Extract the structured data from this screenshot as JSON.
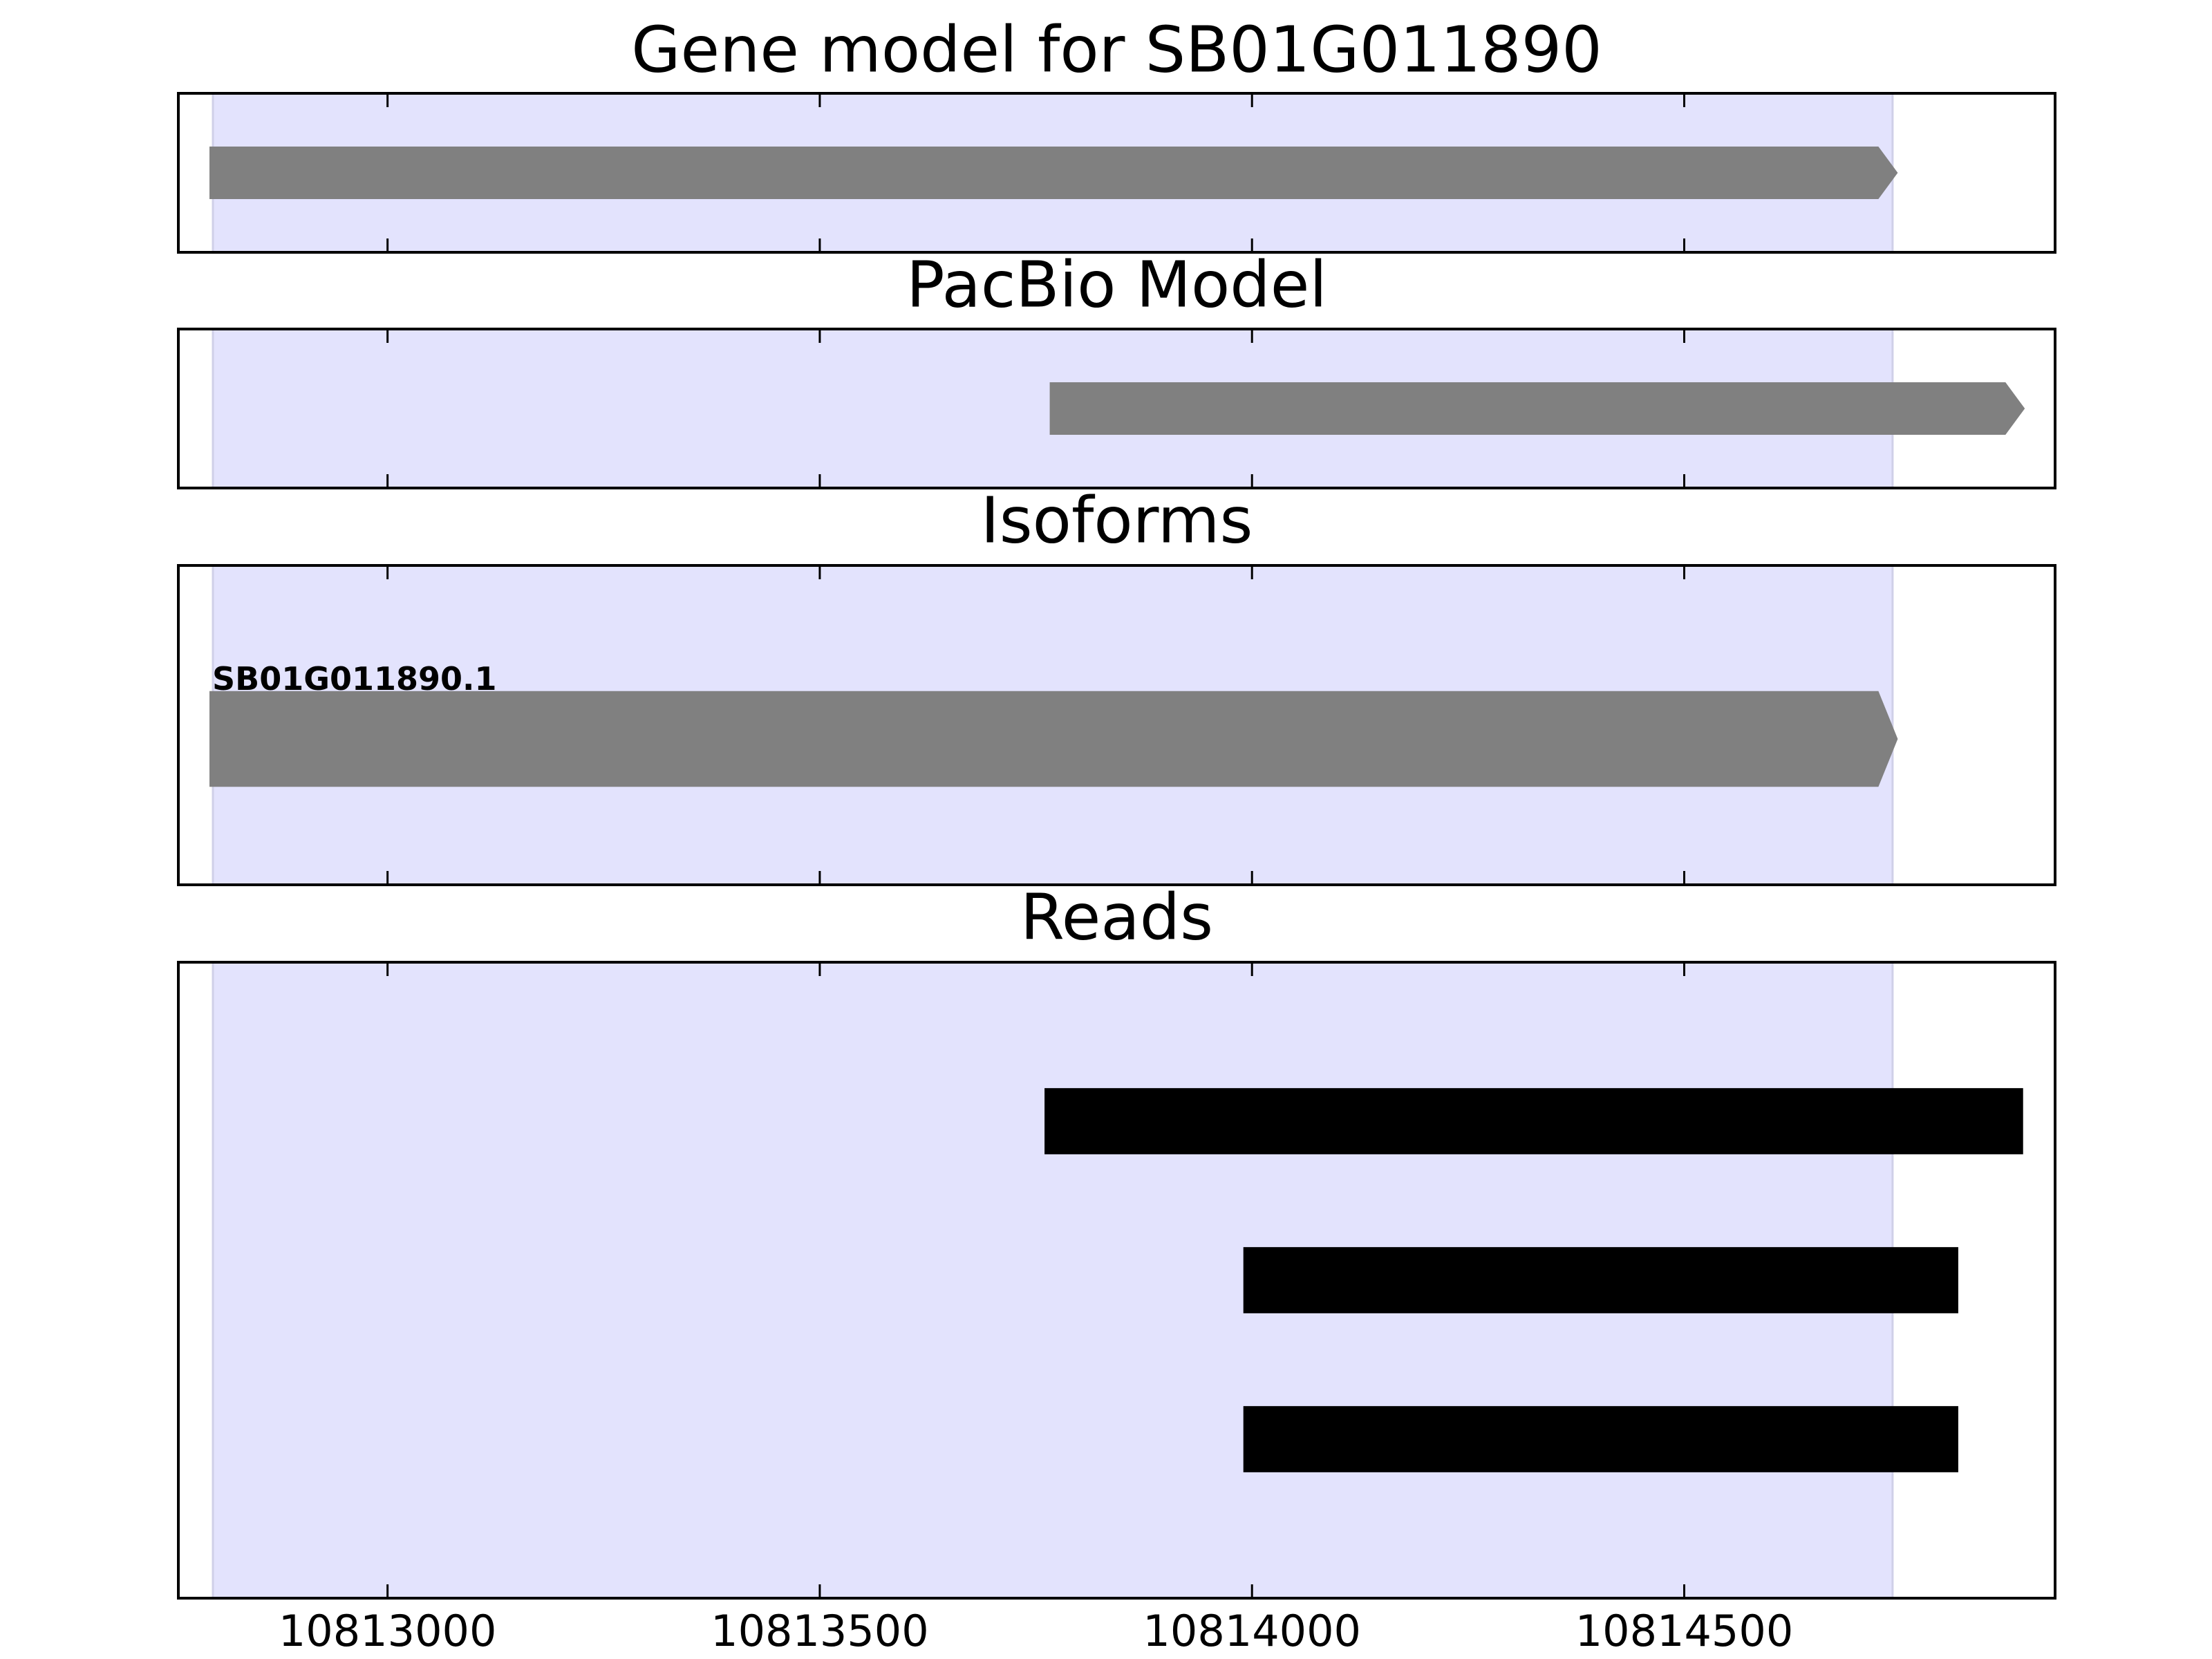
{
  "chart_data": [
    {
      "type": "gene",
      "title": "Gene model for SB01G011890",
      "xlim": [
        10812758,
        10814929
      ],
      "xticks": [
        10813000,
        10813500,
        10814000,
        10814500
      ],
      "highlight": [
        10812798,
        10814741
      ],
      "highlight_color": "#e3e3fd",
      "features": [
        {
          "start": 10812794,
          "end": 10814747
        }
      ],
      "color": "#808080"
    },
    {
      "type": "gene",
      "title": "PacBio Model",
      "xlim": [
        10812758,
        10814929
      ],
      "xticks": [
        10813000,
        10813500,
        10814000,
        10814500
      ],
      "highlight": [
        10812798,
        10814741
      ],
      "highlight_color": "#e3e3fd",
      "features": [
        {
          "start": 10813766,
          "end": 10814894
        }
      ],
      "color": "#808080"
    },
    {
      "type": "gene",
      "title": "Isoforms",
      "xlim": [
        10812758,
        10814929
      ],
      "xticks": [
        10813000,
        10813500,
        10814000,
        10814500
      ],
      "highlight": [
        10812798,
        10814741
      ],
      "highlight_color": "#e3e3fd",
      "features": [
        {
          "start": 10812794,
          "end": 10814747,
          "label": "SB01G011890.1"
        }
      ],
      "color": "#808080"
    },
    {
      "type": "reads",
      "title": "Reads",
      "xlim": [
        10812758,
        10814929
      ],
      "xticks": [
        10813000,
        10813500,
        10814000,
        10814500
      ],
      "highlight": [
        10812798,
        10814741
      ],
      "highlight_color": "#e3e3fd",
      "features": [
        {
          "start": 10813760,
          "end": 10814892
        },
        {
          "start": 10813990,
          "end": 10814817
        },
        {
          "start": 10813990,
          "end": 10814817
        }
      ],
      "color": "#000000"
    }
  ]
}
